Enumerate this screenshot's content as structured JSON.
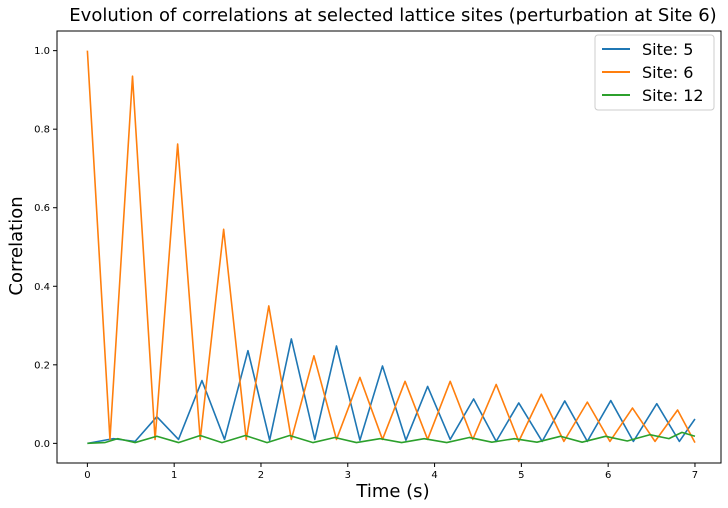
{
  "chart_data": {
    "type": "line",
    "title": "Evolution of correlations at selected lattice sites (perturbation at Site 6)",
    "xlabel": "Time (s)",
    "ylabel": "Correlation",
    "xlim": [
      -0.35,
      7.3
    ],
    "ylim": [
      -0.05,
      1.05
    ],
    "xticks": [
      0,
      1,
      2,
      3,
      4,
      5,
      6,
      7
    ],
    "yticks": [
      0.0,
      0.2,
      0.4,
      0.6,
      0.8,
      1.0
    ],
    "ytick_labels": [
      "0.0",
      "0.2",
      "0.4",
      "0.6",
      "0.8",
      "1.0"
    ],
    "grid": false,
    "legend_position": "top-right",
    "series": [
      {
        "name": "Site: 5",
        "color": "#1f77b4",
        "points": [
          [
            0,
            0.0
          ],
          [
            0.3,
            0.012
          ],
          [
            0.55,
            0.005
          ],
          [
            0.8,
            0.068
          ],
          [
            1.05,
            0.01
          ],
          [
            1.32,
            0.16
          ],
          [
            1.58,
            0.01
          ],
          [
            1.85,
            0.236
          ],
          [
            2.1,
            0.008
          ],
          [
            2.35,
            0.266
          ],
          [
            2.62,
            0.01
          ],
          [
            2.87,
            0.248
          ],
          [
            3.14,
            0.008
          ],
          [
            3.4,
            0.197
          ],
          [
            3.67,
            0.008
          ],
          [
            3.92,
            0.145
          ],
          [
            4.18,
            0.01
          ],
          [
            4.45,
            0.113
          ],
          [
            4.71,
            0.005
          ],
          [
            4.97,
            0.103
          ],
          [
            5.24,
            0.005
          ],
          [
            5.5,
            0.108
          ],
          [
            5.76,
            0.005
          ],
          [
            6.03,
            0.109
          ],
          [
            6.29,
            0.005
          ],
          [
            6.56,
            0.101
          ],
          [
            6.82,
            0.005
          ],
          [
            7.0,
            0.062
          ]
        ]
      },
      {
        "name": "Site: 6",
        "color": "#ff7f0e",
        "points": [
          [
            0,
            1.0
          ],
          [
            0.26,
            0.01
          ],
          [
            0.52,
            0.935
          ],
          [
            0.78,
            0.01
          ],
          [
            1.04,
            0.762
          ],
          [
            1.3,
            0.01
          ],
          [
            1.57,
            0.545
          ],
          [
            1.83,
            0.01
          ],
          [
            2.09,
            0.35
          ],
          [
            2.35,
            0.01
          ],
          [
            2.61,
            0.223
          ],
          [
            2.87,
            0.01
          ],
          [
            3.14,
            0.168
          ],
          [
            3.4,
            0.01
          ],
          [
            3.66,
            0.158
          ],
          [
            3.92,
            0.01
          ],
          [
            4.18,
            0.158
          ],
          [
            4.44,
            0.01
          ],
          [
            4.71,
            0.15
          ],
          [
            4.97,
            0.005
          ],
          [
            5.23,
            0.125
          ],
          [
            5.49,
            0.005
          ],
          [
            5.76,
            0.105
          ],
          [
            6.02,
            0.005
          ],
          [
            6.28,
            0.09
          ],
          [
            6.54,
            0.005
          ],
          [
            6.8,
            0.085
          ],
          [
            7.0,
            0.002
          ]
        ]
      },
      {
        "name": "Site: 12",
        "color": "#2ca02c",
        "points": [
          [
            0,
            0.0
          ],
          [
            0.2,
            0.002
          ],
          [
            0.35,
            0.012
          ],
          [
            0.55,
            0.002
          ],
          [
            0.8,
            0.018
          ],
          [
            1.05,
            0.002
          ],
          [
            1.3,
            0.02
          ],
          [
            1.55,
            0.002
          ],
          [
            1.82,
            0.02
          ],
          [
            2.07,
            0.002
          ],
          [
            2.33,
            0.02
          ],
          [
            2.6,
            0.002
          ],
          [
            2.85,
            0.015
          ],
          [
            3.1,
            0.002
          ],
          [
            3.37,
            0.012
          ],
          [
            3.62,
            0.002
          ],
          [
            3.88,
            0.012
          ],
          [
            4.14,
            0.002
          ],
          [
            4.4,
            0.015
          ],
          [
            4.66,
            0.003
          ],
          [
            4.92,
            0.012
          ],
          [
            5.18,
            0.003
          ],
          [
            5.45,
            0.018
          ],
          [
            5.7,
            0.003
          ],
          [
            5.97,
            0.018
          ],
          [
            6.22,
            0.006
          ],
          [
            6.48,
            0.022
          ],
          [
            6.7,
            0.012
          ],
          [
            6.85,
            0.028
          ],
          [
            7.0,
            0.018
          ]
        ]
      }
    ]
  }
}
